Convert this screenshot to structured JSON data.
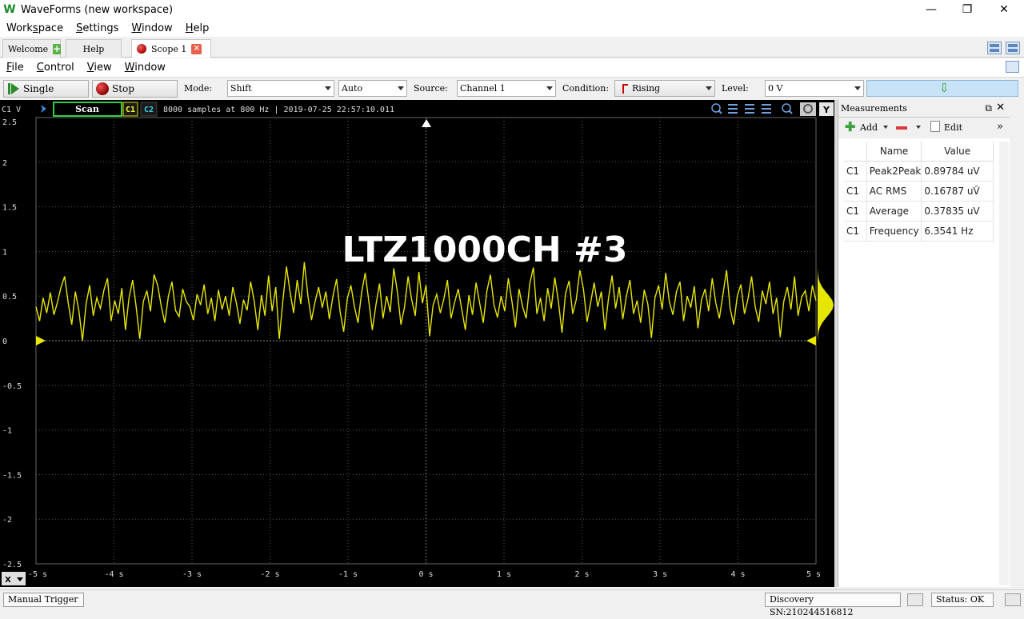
{
  "window": {
    "title": "WaveForms (new workspace)",
    "logo_glyph": "W",
    "controls": {
      "minimize": "—",
      "restore": "❐",
      "close": "✕"
    }
  },
  "main_menu": {
    "items": [
      {
        "pre": "Work",
        "u": "s",
        "post": "pace"
      },
      {
        "pre": "",
        "u": "S",
        "post": "ettings"
      },
      {
        "pre": "",
        "u": "W",
        "post": "indow"
      },
      {
        "pre": "",
        "u": "H",
        "post": "elp"
      }
    ]
  },
  "tabs": [
    {
      "label": "Welcome"
    },
    {
      "label": "Help"
    },
    {
      "label": "Scope 1"
    }
  ],
  "scope_menu": {
    "items": [
      {
        "pre": "",
        "u": "F",
        "post": "ile"
      },
      {
        "pre": "",
        "u": "C",
        "post": "ontrol"
      },
      {
        "pre": "",
        "u": "V",
        "post": "iew"
      },
      {
        "pre": "",
        "u": "W",
        "post": "indow"
      }
    ]
  },
  "toolbar": {
    "single_label": "Single",
    "stop_label": "Stop",
    "mode_label": "Mode:",
    "mode_value": "Shift",
    "trigger_mode_value": "Auto",
    "source_label": "Source:",
    "source_value": "Channel 1",
    "condition_label": "Condition:",
    "condition_value": "Rising",
    "level_label": "Level:",
    "level_value": "0 V",
    "arm_glyph": "⇩"
  },
  "plot": {
    "channel_unit_label": "C1 V",
    "scan_button": "Scan",
    "ch1_label": "C1",
    "ch2_label": "C2",
    "info_text": "8000 samples at 800 Hz | 2019-07-25 22:57:10.011",
    "overlay_title": "LTZ1000CH #3",
    "trace_color": "#e6e600",
    "grid_color": "#5a5a5a"
  },
  "chart_data": {
    "type": "line",
    "ylabel": "C1 V",
    "x_ticks": [
      "-5 s",
      "-4 s",
      "-3 s",
      "-2 s",
      "-1 s",
      "0 s",
      "1 s",
      "2 s",
      "3 s",
      "4 s",
      "5 s"
    ],
    "y_ticks": [
      "2.5",
      "2",
      "1.5",
      "1",
      "0.5",
      "0",
      "-0.5",
      "-1",
      "-1.5",
      "-2",
      "-2.5"
    ],
    "xlim": [
      -5,
      5
    ],
    "ylim": [
      -2.5,
      2.5
    ],
    "grid": true,
    "series": [
      {
        "values": [
          0.38,
          0.22,
          0.48,
          0.31,
          0.54,
          0.29,
          0.43,
          0.6,
          0.72,
          0.42,
          0.18,
          0.55,
          0.33,
          0.0,
          0.41,
          0.62,
          0.28,
          0.48,
          0.36,
          0.57,
          0.7,
          0.22,
          0.45,
          0.3,
          0.59,
          0.12,
          0.48,
          0.68,
          0.38,
          0.02,
          0.44,
          0.56,
          0.33,
          0.74,
          0.62,
          0.39,
          0.2,
          0.5,
          0.66,
          0.34,
          0.27,
          0.58,
          0.44,
          0.38,
          0.23,
          0.52,
          0.4,
          0.63,
          0.3,
          0.48,
          0.22,
          0.57,
          0.35,
          0.5,
          0.28,
          0.6,
          0.42,
          0.19,
          0.46,
          0.34,
          0.66,
          0.44,
          0.12,
          0.51,
          0.28,
          0.73,
          0.33,
          0.6,
          0.02,
          0.45,
          0.83,
          0.55,
          0.31,
          0.68,
          0.41,
          0.88,
          0.5,
          0.23,
          0.44,
          0.6,
          0.37,
          0.55,
          0.24,
          0.5,
          0.69,
          0.32,
          0.1,
          0.47,
          0.62,
          0.38,
          0.2,
          0.54,
          0.76,
          0.45,
          0.12,
          0.4,
          0.64,
          0.25,
          0.5,
          0.32,
          0.81,
          0.55,
          0.18,
          0.38,
          0.72,
          0.46,
          0.28,
          0.77,
          0.42,
          0.62,
          0.05,
          0.4,
          0.52,
          0.31,
          0.47,
          0.68,
          0.25,
          0.43,
          0.58,
          0.35,
          0.12,
          0.51,
          0.29,
          0.65,
          0.42,
          0.2,
          0.55,
          0.74,
          0.4,
          0.26,
          0.5,
          0.33,
          0.7,
          0.45,
          0.15,
          0.58,
          0.38,
          0.25,
          0.64,
          0.82,
          0.3,
          0.48,
          0.22,
          0.59,
          0.36,
          0.71,
          0.44,
          0.09,
          0.53,
          0.67,
          0.3,
          0.46,
          0.79,
          0.58,
          0.21,
          0.42,
          0.65,
          0.38,
          0.55,
          0.12,
          0.47,
          0.73,
          0.36,
          0.6,
          0.24,
          0.5,
          0.68,
          0.3,
          0.45,
          0.2,
          0.57,
          0.41,
          0.03,
          0.48,
          0.62,
          0.35,
          0.76,
          0.44,
          0.29,
          0.55,
          0.66,
          0.22,
          0.5,
          0.37,
          0.61,
          0.14,
          0.46,
          0.58,
          0.33,
          0.7,
          0.42,
          0.25,
          0.52,
          0.79,
          0.36,
          0.18,
          0.5,
          0.63,
          0.3,
          0.47,
          0.72,
          0.38,
          0.21,
          0.56,
          0.41,
          0.66,
          0.3,
          0.48,
          0.04,
          0.44,
          0.6,
          0.35,
          0.72,
          0.28,
          0.49,
          0.56,
          0.33,
          0.62,
          0.45
        ]
      }
    ]
  },
  "measurements": {
    "title": "Measurements",
    "add_label": "Add",
    "edit_label": "Edit",
    "columns": [
      "Name",
      "Value"
    ],
    "rows": [
      {
        "ch": "C1",
        "name": "Peak2Peak",
        "value": "0.89784 uV"
      },
      {
        "ch": "C1",
        "name": "AC RMS",
        "value": "0.16787 uV̂"
      },
      {
        "ch": "C1",
        "name": "Average",
        "value": "0.37835 uV"
      },
      {
        "ch": "C1",
        "name": "Frequency",
        "value": "6.3541 Hz"
      }
    ]
  },
  "status": {
    "trigger": "Manual Trigger",
    "device": "Discovery SN:210244516812",
    "status": "Status: OK"
  }
}
